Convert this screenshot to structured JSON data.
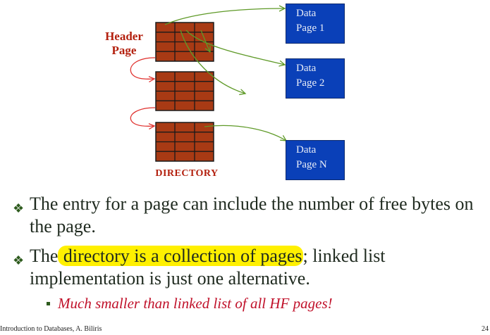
{
  "diagram": {
    "header_label": [
      "Header",
      "Page"
    ],
    "directory_label": "DIRECTORY",
    "data_pages": [
      {
        "line1": "Data",
        "line2": "Page 1"
      },
      {
        "line1": "Data",
        "line2": "Page 2"
      },
      {
        "line1": "Data",
        "line2": "Page N"
      }
    ],
    "colors": {
      "grid_fill": "#a83a14",
      "grid_line": "#1a1a1a",
      "data_page": "#0a40b8",
      "link_arrow": "#e0312e",
      "pointer_arrow": "#5f9a28",
      "label_red": "#b3200e"
    }
  },
  "bullets": {
    "item1": "The entry for a page can include the number of free bytes on the page.",
    "item2_before": "The",
    "item2_highlight": " directory is a collection of pages",
    "item2_after": "; linked list implementation is just one alternative.",
    "sub_item": "Much smaller than linked list of all HF pages!",
    "highlight_color": "#fff000",
    "bullet_icon": "diamond-four-bullet"
  },
  "footer": {
    "text": "Introduction to Databases,  A. Biliris",
    "page_number": "24"
  }
}
